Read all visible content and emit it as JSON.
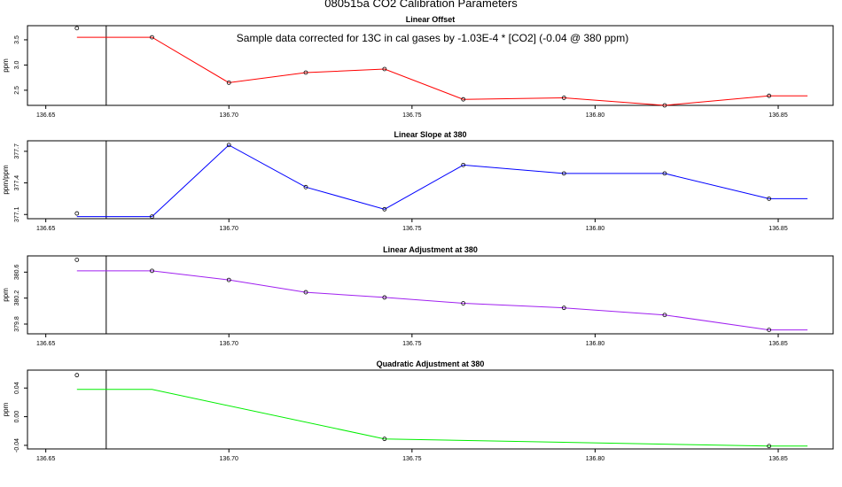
{
  "page_title": "080515a   CO2 Calibration Parameters",
  "annotation": "Sample data corrected for 13C in cal gases by -1.03E-4 * [CO2] (-0.04 @ 380 ppm)",
  "chart_data": [
    {
      "type": "line",
      "title": "Linear Offset",
      "ylabel": "ppm",
      "color": "#ff0000",
      "xlim": [
        136.645,
        136.865
      ],
      "ylim": [
        2.2,
        3.78
      ],
      "xticks": [
        "136.65",
        "136.70",
        "136.75",
        "136.80",
        "136.85"
      ],
      "yticks": [
        "2.5",
        "3.0",
        "3.5"
      ],
      "vline_x": 136.6665,
      "line": {
        "x": [
          136.6585,
          136.679,
          136.7,
          136.721,
          136.7425,
          136.764,
          136.7915,
          136.819,
          136.8475,
          136.858
        ],
        "y": [
          3.55,
          3.55,
          2.65,
          2.85,
          2.92,
          2.32,
          2.35,
          2.2,
          2.39,
          2.39
        ]
      },
      "points": {
        "x": [
          136.6585,
          136.679,
          136.7,
          136.721,
          136.7425,
          136.764,
          136.7915,
          136.819,
          136.8475
        ],
        "y": [
          3.73,
          3.55,
          2.65,
          2.85,
          2.92,
          2.32,
          2.35,
          2.2,
          2.39
        ]
      }
    },
    {
      "type": "line",
      "title": "Linear Slope at 380",
      "ylabel": "ppm/ppm",
      "color": "#0000ff",
      "xlim": [
        136.645,
        136.865
      ],
      "ylim": [
        377.06,
        377.8
      ],
      "xticks": [
        "136.65",
        "136.70",
        "136.75",
        "136.80",
        "136.85"
      ],
      "yticks": [
        "377.1",
        "377.4",
        "377.7"
      ],
      "vline_x": 136.6665,
      "line": {
        "x": [
          136.6585,
          136.679,
          136.7,
          136.721,
          136.7425,
          136.764,
          136.7915,
          136.819,
          136.8475,
          136.858
        ],
        "y": [
          377.08,
          377.08,
          377.76,
          377.36,
          377.15,
          377.57,
          377.49,
          377.49,
          377.25,
          377.25
        ]
      },
      "points": {
        "x": [
          136.6585,
          136.679,
          136.7,
          136.721,
          136.7425,
          136.764,
          136.7915,
          136.819,
          136.8475
        ],
        "y": [
          377.11,
          377.08,
          377.76,
          377.36,
          377.15,
          377.57,
          377.49,
          377.49,
          377.25
        ]
      }
    },
    {
      "type": "line",
      "title": "Linear Adjustment at 380",
      "ylabel": "ppm",
      "color": "#a020f0",
      "xlim": [
        136.645,
        136.865
      ],
      "ylim": [
        379.65,
        380.85
      ],
      "xticks": [
        "136.65",
        "136.70",
        "136.75",
        "136.80",
        "136.85"
      ],
      "yticks": [
        "379.8",
        "380.2",
        "380.6"
      ],
      "vline_x": 136.6665,
      "line": {
        "x": [
          136.6585,
          136.679,
          136.7,
          136.721,
          136.7425,
          136.764,
          136.7915,
          136.819,
          136.8475,
          136.858
        ],
        "y": [
          380.62,
          380.62,
          380.48,
          380.29,
          380.21,
          380.12,
          380.05,
          379.94,
          379.71,
          379.71
        ]
      },
      "points": {
        "x": [
          136.6585,
          136.679,
          136.7,
          136.721,
          136.7425,
          136.764,
          136.7915,
          136.819,
          136.8475
        ],
        "y": [
          380.79,
          380.62,
          380.48,
          380.29,
          380.21,
          380.12,
          380.05,
          379.94,
          379.71
        ]
      }
    },
    {
      "type": "line",
      "title": "Quadratic Adjustment at 380",
      "ylabel": "ppm",
      "color": "#00ee00",
      "xlim": [
        136.645,
        136.865
      ],
      "ylim": [
        -0.045,
        0.065
      ],
      "xticks": [
        "136.65",
        "136.70",
        "136.75",
        "136.80",
        "136.85"
      ],
      "yticks": [
        "-0.04",
        "0.00",
        "0.04"
      ],
      "vline_x": 136.6665,
      "line": {
        "x": [
          136.6585,
          136.679,
          136.7425,
          136.8475,
          136.858
        ],
        "y": [
          0.038,
          0.038,
          -0.031,
          -0.041,
          -0.041
        ]
      },
      "points": {
        "x": [
          136.6585,
          136.7425,
          136.8475
        ],
        "y": [
          0.058,
          -0.031,
          -0.041
        ]
      }
    }
  ]
}
